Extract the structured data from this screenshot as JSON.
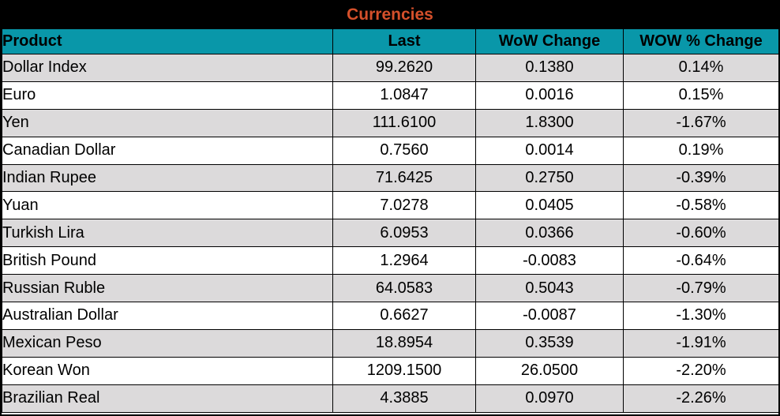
{
  "chart_data": {
    "type": "table",
    "title": "Currencies",
    "columns": [
      "Product",
      "Last",
      "WoW Change",
      "WOW % Change"
    ],
    "rows": [
      [
        "Dollar Index",
        "99.2620",
        "0.1380",
        "0.14%"
      ],
      [
        "Euro",
        "1.0847",
        "0.0016",
        "0.15%"
      ],
      [
        "Yen",
        "111.6100",
        "1.8300",
        "-1.67%"
      ],
      [
        "Canadian Dollar",
        "0.7560",
        "0.0014",
        "0.19%"
      ],
      [
        "Indian Rupee",
        "71.6425",
        "0.2750",
        "-0.39%"
      ],
      [
        "Yuan",
        "7.0278",
        "0.0405",
        "-0.58%"
      ],
      [
        "Turkish Lira",
        "6.0953",
        "0.0366",
        "-0.60%"
      ],
      [
        "British Pound",
        "1.2964",
        "-0.0083",
        "-0.64%"
      ],
      [
        "Russian Ruble",
        "64.0583",
        "0.5043",
        "-0.79%"
      ],
      [
        "Australian Dollar",
        "0.6627",
        "-0.0087",
        "-1.30%"
      ],
      [
        "Mexican Peso",
        "18.8954",
        "0.3539",
        "-1.91%"
      ],
      [
        "Korean Won",
        "1209.1500",
        "26.0500",
        "-2.20%"
      ],
      [
        "Brazilian Real",
        "4.3885",
        "0.0970",
        "-2.26%"
      ]
    ],
    "layout": {
      "title_position": "top-center",
      "alternating_rows": true,
      "grid": true
    }
  },
  "colors": {
    "title_bg": "#000000",
    "title_text": "#D5502B",
    "header_bg": "#0997A9",
    "header_text": "#000000",
    "row_alt_bg": "#DCDADB",
    "row_bg": "#FFFFFF",
    "border": "#000000"
  }
}
